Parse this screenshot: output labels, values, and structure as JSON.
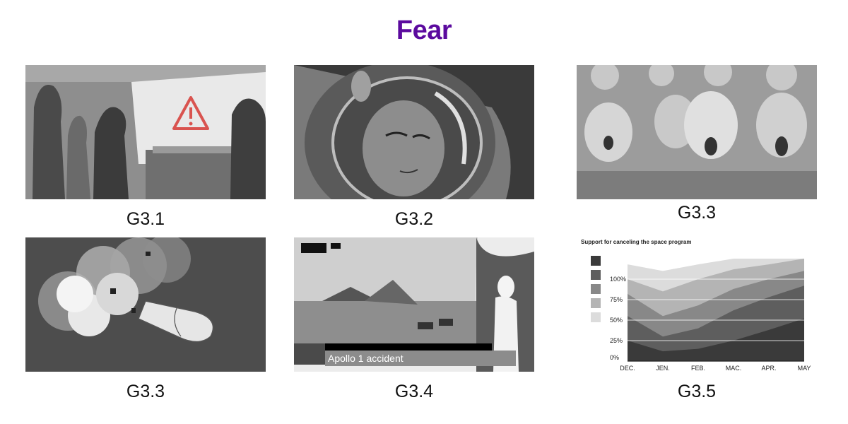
{
  "page": {
    "title": "Fear"
  },
  "panels": [
    {
      "caption": "G3.1",
      "depicts": "warning-sign-scene"
    },
    {
      "caption": "G3.2",
      "depicts": "astronaut-helmet"
    },
    {
      "caption": "G3.3",
      "depicts": "shocked-crowd"
    },
    {
      "caption": "G3.3",
      "depicts": "rocket-explosion"
    },
    {
      "caption": "G3.4",
      "depicts": "news-broadcast",
      "banner": "Apollo 1 accident"
    },
    {
      "caption": "G3.5",
      "depicts": "stacked-area-chart"
    }
  ],
  "colors": {
    "title": "#5b0a9e",
    "warning": "#d9534f"
  },
  "chart_data": {
    "type": "area",
    "title": "Support for canceling the space program",
    "categories": [
      "DEC.",
      "JEN.",
      "FEB.",
      "MAC.",
      "APR.",
      "MAY"
    ],
    "y_ticks": [
      "0%",
      "25%",
      "50%",
      "75%",
      "100%"
    ],
    "ylim": [
      0,
      125
    ],
    "legend_placement": "left",
    "series": [
      {
        "values": [
          25,
          12,
          15,
          25,
          38,
          52
        ],
        "color": "#3a3a3a"
      },
      {
        "values": [
          55,
          30,
          40,
          62,
          78,
          92
        ],
        "color": "#5e5e5e"
      },
      {
        "values": [
          82,
          55,
          68,
          88,
          100,
          110
        ],
        "color": "#888888"
      },
      {
        "values": [
          100,
          85,
          100,
          112,
          118,
          125
        ],
        "color": "#b4b4b4"
      },
      {
        "values": [
          118,
          110,
          118,
          125,
          125,
          125
        ],
        "color": "#dcdcdc"
      }
    ]
  }
}
